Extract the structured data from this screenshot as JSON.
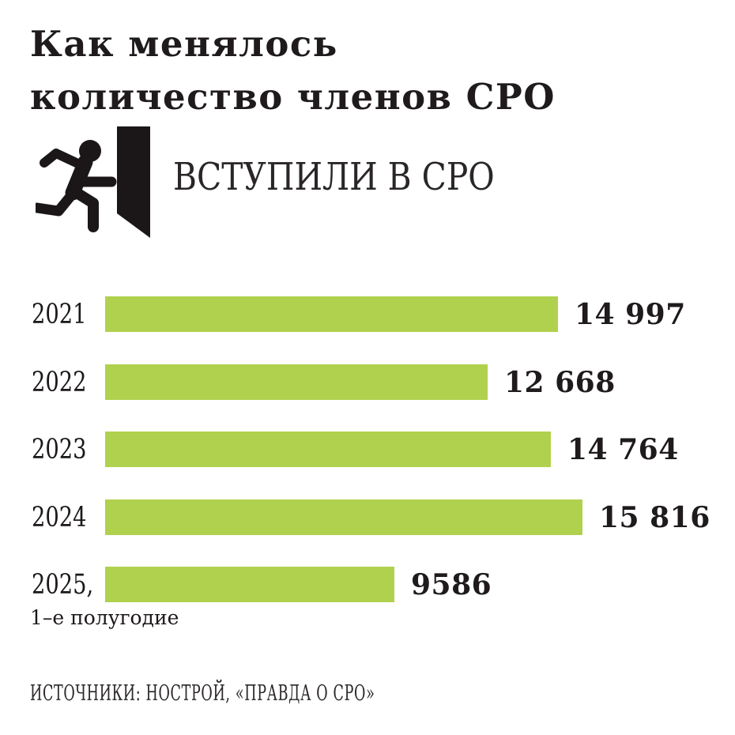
{
  "header": {
    "title_line1": "Как менялось",
    "title_line2": "количество членов СРО"
  },
  "section": {
    "label": "ВСТУПИЛИ В СРО",
    "icon": "person-running-through-door-icon",
    "icon_color": "#1b1718"
  },
  "chart_data": {
    "type": "bar",
    "orientation": "horizontal",
    "title": "ВСТУПИЛИ В СРО",
    "categories": [
      "2021",
      "2022",
      "2023",
      "2024",
      "2025, 1–е полугодие"
    ],
    "values": [
      14997,
      12668,
      14764,
      15816,
      9586
    ],
    "xlim": [
      0,
      15816
    ],
    "grid": false,
    "legend": false,
    "bar_color": "#b0d14d",
    "rows": [
      {
        "year": "2021",
        "sublabel": "",
        "value": 14997,
        "value_label": "14 997"
      },
      {
        "year": "2022",
        "sublabel": "",
        "value": 12668,
        "value_label": "12 668"
      },
      {
        "year": "2023",
        "sublabel": "",
        "value": 14764,
        "value_label": "14 764"
      },
      {
        "year": "2024",
        "sublabel": "",
        "value": 15816,
        "value_label": "15 816"
      },
      {
        "year": "2025,",
        "sublabel": "1–е полугодие",
        "value": 9586,
        "value_label": "9586"
      }
    ]
  },
  "footer": {
    "source": "ИСТОЧНИКИ: НОСТРОЙ, «ПРАВДА О СРО»"
  }
}
